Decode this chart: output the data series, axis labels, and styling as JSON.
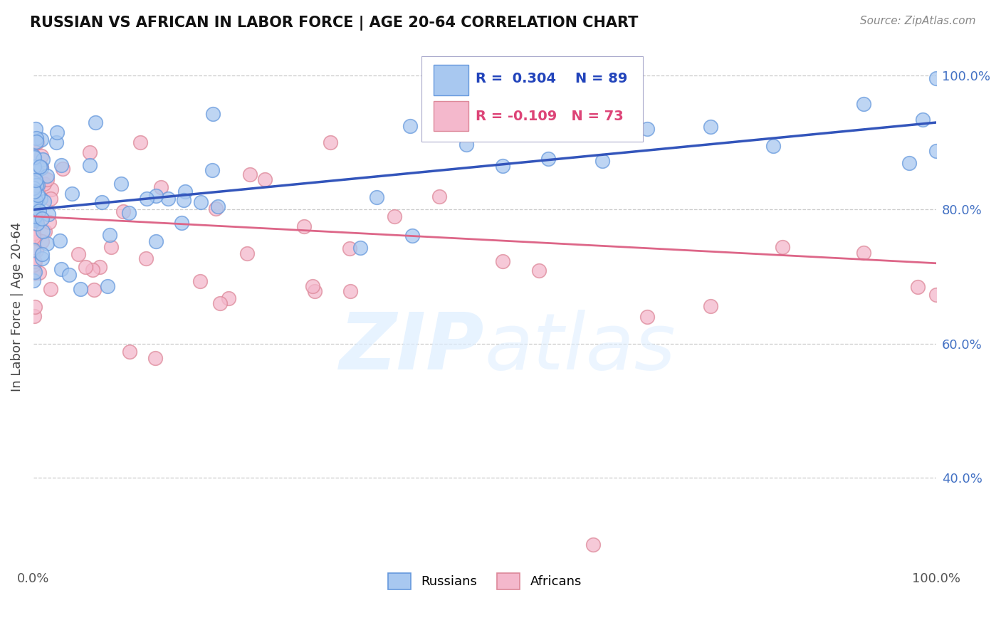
{
  "title": "RUSSIAN VS AFRICAN IN LABOR FORCE | AGE 20-64 CORRELATION CHART",
  "source": "Source: ZipAtlas.com",
  "ylabel": "In Labor Force | Age 20-64",
  "xlim": [
    0.0,
    1.0
  ],
  "ylim": [
    0.27,
    1.04
  ],
  "russian_R": 0.304,
  "russian_N": 89,
  "african_R": -0.109,
  "african_N": 73,
  "russian_color_fill": "#A8C8F0",
  "russian_color_edge": "#6699DD",
  "african_color_fill": "#F4B8CC",
  "african_color_edge": "#DD8899",
  "russian_line_color": "#3355BB",
  "african_line_color": "#DD6688",
  "background_color": "#ffffff",
  "grid_color": "#CCCCCC",
  "title_color": "#222222",
  "right_ytick_labels": [
    "100.0%",
    "80.0%",
    "60.0%",
    "40.0%"
  ],
  "right_ytick_values": [
    1.0,
    0.8,
    0.6,
    0.4
  ],
  "legend_russian_label": "Russians",
  "legend_african_label": "Africans",
  "russian_line_start_y": 0.8,
  "russian_line_end_y": 0.93,
  "african_line_start_y": 0.79,
  "african_line_end_y": 0.72
}
